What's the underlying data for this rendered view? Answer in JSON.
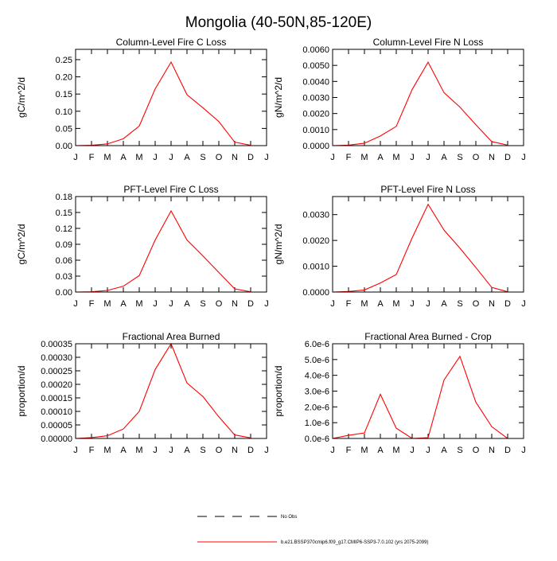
{
  "title": "Mongolia (40-50N,85-120E)",
  "legend": [
    {
      "name": "No Obs",
      "color": "#000000",
      "dashed": true
    },
    {
      "name": "b.e21.BSSP370cmip6.f09_g17.CMIP6-SSP3-7.0.102 (yrs 2075-2099)",
      "color": "#ff0000",
      "dashed": false
    }
  ],
  "chart_data": [
    {
      "type": "line",
      "title": "Column-Level Fire C Loss",
      "y_label": "gC/m^2/d",
      "color": "#ff0000",
      "x": [
        0,
        1,
        2,
        3,
        4,
        5,
        6,
        7,
        8,
        9,
        10,
        11
      ],
      "values": [
        0,
        0.001,
        0.005,
        0.02,
        0.057,
        0.165,
        0.243,
        0.148,
        0.11,
        0.07,
        0.01,
        0.001
      ],
      "xlim": [
        0,
        12
      ],
      "xticks": [
        {
          "value": 0,
          "label": "J"
        },
        {
          "value": 1,
          "label": "F"
        },
        {
          "value": 2,
          "label": "M"
        },
        {
          "value": 3,
          "label": "A"
        },
        {
          "value": 4,
          "label": "M"
        },
        {
          "value": 5,
          "label": "J"
        },
        {
          "value": 6,
          "label": "J"
        },
        {
          "value": 7,
          "label": "A"
        },
        {
          "value": 8,
          "label": "S"
        },
        {
          "value": 9,
          "label": "O"
        },
        {
          "value": 10,
          "label": "N"
        },
        {
          "value": 11,
          "label": "D"
        },
        {
          "value": 12,
          "label": "J"
        }
      ],
      "ylim": [
        0,
        0.28
      ],
      "yticks": [
        {
          "value": 0,
          "label": "0.00"
        },
        {
          "value": 0.05,
          "label": "0.05"
        },
        {
          "value": 0.1,
          "label": "0.10"
        },
        {
          "value": 0.15,
          "label": "0.15"
        },
        {
          "value": 0.2,
          "label": "0.20"
        },
        {
          "value": 0.25,
          "label": "0.25"
        }
      ]
    },
    {
      "type": "line",
      "title": "Column-Level Fire N Loss",
      "y_label": "gN/m^2/d",
      "color": "#ff0000",
      "x": [
        0,
        1,
        2,
        3,
        4,
        5,
        6,
        7,
        8,
        9,
        10,
        11
      ],
      "values": [
        0,
        3e-05,
        0.00015,
        0.0006,
        0.0012,
        0.0035,
        0.0052,
        0.0033,
        0.0024,
        0.0013,
        0.00025,
        3e-05
      ],
      "xlim": [
        0,
        12
      ],
      "xticks": [
        {
          "value": 0,
          "label": "J"
        },
        {
          "value": 1,
          "label": "F"
        },
        {
          "value": 2,
          "label": "M"
        },
        {
          "value": 3,
          "label": "A"
        },
        {
          "value": 4,
          "label": "M"
        },
        {
          "value": 5,
          "label": "J"
        },
        {
          "value": 6,
          "label": "J"
        },
        {
          "value": 7,
          "label": "A"
        },
        {
          "value": 8,
          "label": "S"
        },
        {
          "value": 9,
          "label": "O"
        },
        {
          "value": 10,
          "label": "N"
        },
        {
          "value": 11,
          "label": "D"
        },
        {
          "value": 12,
          "label": "J"
        }
      ],
      "ylim": [
        0,
        0.006
      ],
      "yticks": [
        {
          "value": 0,
          "label": "0.0000"
        },
        {
          "value": 0.001,
          "label": "0.0010"
        },
        {
          "value": 0.002,
          "label": "0.0020"
        },
        {
          "value": 0.003,
          "label": "0.0030"
        },
        {
          "value": 0.004,
          "label": "0.0040"
        },
        {
          "value": 0.005,
          "label": "0.0050"
        },
        {
          "value": 0.006,
          "label": "0.0060"
        }
      ]
    },
    {
      "type": "line",
      "title": "PFT-Level Fire C Loss",
      "y_label": "gC/m^2/d",
      "color": "#ff0000",
      "x": [
        0,
        1,
        2,
        3,
        4,
        5,
        6,
        7,
        8,
        9,
        10,
        11
      ],
      "values": [
        0,
        0.0005,
        0.003,
        0.011,
        0.031,
        0.098,
        0.153,
        0.098,
        0.068,
        0.037,
        0.006,
        0.0005
      ],
      "xlim": [
        0,
        12
      ],
      "xticks": [
        {
          "value": 0,
          "label": "J"
        },
        {
          "value": 1,
          "label": "F"
        },
        {
          "value": 2,
          "label": "M"
        },
        {
          "value": 3,
          "label": "A"
        },
        {
          "value": 4,
          "label": "M"
        },
        {
          "value": 5,
          "label": "J"
        },
        {
          "value": 6,
          "label": "J"
        },
        {
          "value": 7,
          "label": "A"
        },
        {
          "value": 8,
          "label": "S"
        },
        {
          "value": 9,
          "label": "O"
        },
        {
          "value": 10,
          "label": "N"
        },
        {
          "value": 11,
          "label": "D"
        },
        {
          "value": 12,
          "label": "J"
        }
      ],
      "ylim": [
        0,
        0.18
      ],
      "yticks": [
        {
          "value": 0,
          "label": "0.00"
        },
        {
          "value": 0.03,
          "label": "0.03"
        },
        {
          "value": 0.06,
          "label": "0.06"
        },
        {
          "value": 0.09,
          "label": "0.09"
        },
        {
          "value": 0.12,
          "label": "0.12"
        },
        {
          "value": 0.15,
          "label": "0.15"
        },
        {
          "value": 0.18,
          "label": "0.18"
        }
      ]
    },
    {
      "type": "line",
      "title": "PFT-Level Fire N Loss",
      "y_label": "gN/m^2/d",
      "color": "#ff0000",
      "x": [
        0,
        1,
        2,
        3,
        4,
        5,
        6,
        7,
        8,
        9,
        10,
        11
      ],
      "values": [
        0,
        2e-05,
        8e-05,
        0.00035,
        0.00068,
        0.0021,
        0.0034,
        0.0024,
        0.0017,
        0.00095,
        0.00018,
        1e-05
      ],
      "xlim": [
        0,
        12
      ],
      "xticks": [
        {
          "value": 0,
          "label": "J"
        },
        {
          "value": 1,
          "label": "F"
        },
        {
          "value": 2,
          "label": "M"
        },
        {
          "value": 3,
          "label": "A"
        },
        {
          "value": 4,
          "label": "M"
        },
        {
          "value": 5,
          "label": "J"
        },
        {
          "value": 6,
          "label": "J"
        },
        {
          "value": 7,
          "label": "A"
        },
        {
          "value": 8,
          "label": "S"
        },
        {
          "value": 9,
          "label": "O"
        },
        {
          "value": 10,
          "label": "N"
        },
        {
          "value": 11,
          "label": "D"
        },
        {
          "value": 12,
          "label": "J"
        }
      ],
      "ylim": [
        0,
        0.0037
      ],
      "yticks": [
        {
          "value": 0,
          "label": "0.0000"
        },
        {
          "value": 0.001,
          "label": "0.0010"
        },
        {
          "value": 0.002,
          "label": "0.0020"
        },
        {
          "value": 0.003,
          "label": "0.0030"
        }
      ]
    },
    {
      "type": "line",
      "title": "Fractional Area Burned",
      "y_label": "proportion/d",
      "color": "#ff0000",
      "x": [
        0,
        1,
        2,
        3,
        4,
        5,
        6,
        7,
        8,
        9,
        10,
        11
      ],
      "values": [
        0,
        3e-06,
        1e-05,
        3.5e-05,
        0.0001,
        0.000255,
        0.00035,
        0.000205,
        0.000155,
        8e-05,
        1.3e-05,
        2e-06
      ],
      "xlim": [
        0,
        12
      ],
      "xticks": [
        {
          "value": 0,
          "label": "J"
        },
        {
          "value": 1,
          "label": "F"
        },
        {
          "value": 2,
          "label": "M"
        },
        {
          "value": 3,
          "label": "A"
        },
        {
          "value": 4,
          "label": "M"
        },
        {
          "value": 5,
          "label": "J"
        },
        {
          "value": 6,
          "label": "J"
        },
        {
          "value": 7,
          "label": "A"
        },
        {
          "value": 8,
          "label": "S"
        },
        {
          "value": 9,
          "label": "O"
        },
        {
          "value": 10,
          "label": "N"
        },
        {
          "value": 11,
          "label": "D"
        },
        {
          "value": 12,
          "label": "J"
        }
      ],
      "ylim": [
        0,
        0.00035
      ],
      "yticks": [
        {
          "value": 0,
          "label": "0.00000"
        },
        {
          "value": 5e-05,
          "label": "0.00005"
        },
        {
          "value": 0.0001,
          "label": "0.00010"
        },
        {
          "value": 0.00015,
          "label": "0.00015"
        },
        {
          "value": 0.0002,
          "label": "0.00020"
        },
        {
          "value": 0.00025,
          "label": "0.00025"
        },
        {
          "value": 0.0003,
          "label": "0.00030"
        },
        {
          "value": 0.00035,
          "label": "0.00035"
        }
      ]
    },
    {
      "type": "line",
      "title": "Fractional Area Burned - Crop",
      "y_label": "proportion/d",
      "color": "#ff0000",
      "x": [
        0,
        1,
        2,
        3,
        4,
        5,
        6,
        7,
        8,
        9,
        10,
        11
      ],
      "values": [
        0,
        2e-07,
        3.5e-07,
        2.8e-06,
        6.5e-07,
        0,
        5e-08,
        3.7e-06,
        5.2e-06,
        2.3e-06,
        7.5e-07,
        0
      ],
      "xlim": [
        0,
        12
      ],
      "xticks": [
        {
          "value": 0,
          "label": "J"
        },
        {
          "value": 1,
          "label": "F"
        },
        {
          "value": 2,
          "label": "M"
        },
        {
          "value": 3,
          "label": "A"
        },
        {
          "value": 4,
          "label": "M"
        },
        {
          "value": 5,
          "label": "J"
        },
        {
          "value": 6,
          "label": "J"
        },
        {
          "value": 7,
          "label": "A"
        },
        {
          "value": 8,
          "label": "S"
        },
        {
          "value": 9,
          "label": "O"
        },
        {
          "value": 10,
          "label": "N"
        },
        {
          "value": 11,
          "label": "D"
        },
        {
          "value": 12,
          "label": "J"
        }
      ],
      "ylim": [
        0,
        6e-06
      ],
      "yticks": [
        {
          "value": 0,
          "label": "0.0e-6"
        },
        {
          "value": 1e-06,
          "label": "1.0e-6"
        },
        {
          "value": 2e-06,
          "label": "2.0e-6"
        },
        {
          "value": 3e-06,
          "label": "3.0e-6"
        },
        {
          "value": 4e-06,
          "label": "4.0e-6"
        },
        {
          "value": 5e-06,
          "label": "5.0e-6"
        },
        {
          "value": 6e-06,
          "label": "6.0e-6"
        }
      ]
    }
  ]
}
